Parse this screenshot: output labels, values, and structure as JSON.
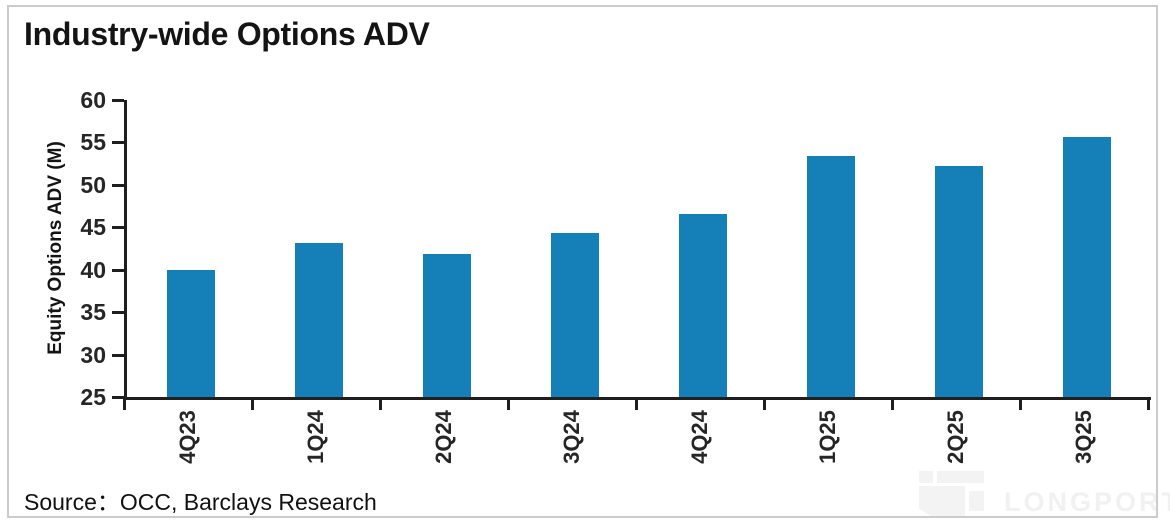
{
  "chart_data": {
    "type": "bar",
    "title": "Industry-wide Options ADV",
    "categories": [
      "4Q23",
      "1Q24",
      "2Q24",
      "3Q24",
      "4Q24",
      "1Q25",
      "2Q25",
      "3Q25"
    ],
    "values": [
      40.0,
      43.1,
      41.9,
      44.3,
      46.6,
      53.4,
      52.2,
      55.6
    ],
    "xlabel": "",
    "ylabel": "Equity Options ADV (M)",
    "ylim": [
      25,
      60
    ],
    "y_ticks": [
      60,
      55,
      50,
      45,
      40,
      35,
      30,
      25
    ],
    "grid": false,
    "legend": false,
    "x_tick_label_rotation": -90,
    "bar_color": "#1580b8"
  },
  "source": "Source：OCC, Barclays Research",
  "watermark": "LONGPORT",
  "colors": {
    "bar": "#1580b8",
    "axis": "#1f1f1f",
    "title_text": "#141414",
    "frame_border": "#cbcbcb",
    "watermark": "#f3f3f3",
    "background": "#ffffff"
  }
}
